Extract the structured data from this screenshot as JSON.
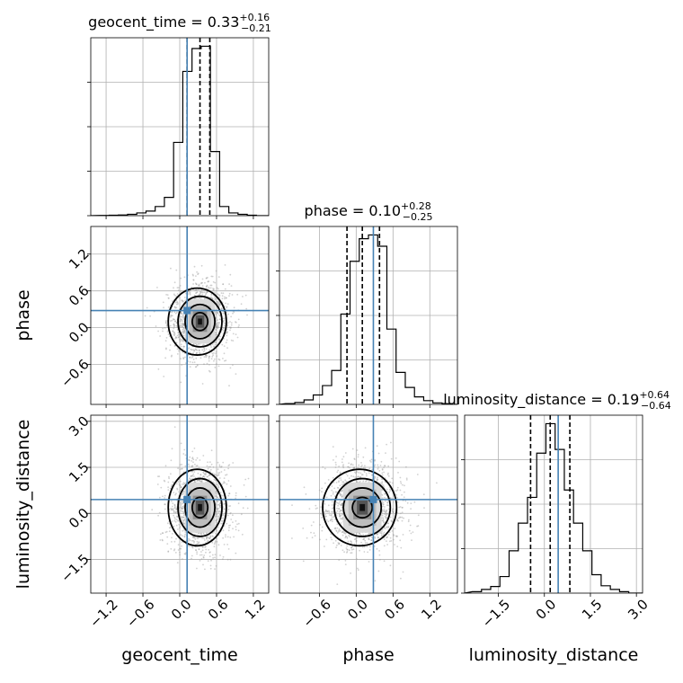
{
  "chart_data": {
    "type": "corner",
    "parameters": [
      "geocent_time",
      "phase",
      "luminosity_distance"
    ],
    "titles": [
      {
        "name": "geocent_time",
        "median": "0.33",
        "plus": "+0.16",
        "minus": "−0.21"
      },
      {
        "name": "phase",
        "median": "0.10",
        "plus": "+0.28",
        "minus": "−0.25"
      },
      {
        "name": "luminosity_distance",
        "median": "0.19",
        "plus": "+0.64",
        "minus": "−0.64"
      }
    ],
    "ranges": [
      [
        -1.45,
        1.45
      ],
      [
        -1.25,
        1.65
      ],
      [
        -2.6,
        3.2
      ]
    ],
    "ticks": [
      {
        "values": [
          -1.2,
          -0.6,
          0.0,
          0.6,
          1.2
        ],
        "labels": [
          "−1.2",
          "−0.6",
          "0.0",
          "0.6",
          "1.2"
        ]
      },
      {
        "values": [
          -0.6,
          0.0,
          0.6,
          1.2
        ],
        "labels": [
          "−0.6",
          "0.0",
          "0.6",
          "1.2"
        ]
      },
      {
        "values": [
          -1.5,
          0.0,
          1.5,
          3.0
        ],
        "labels": [
          "−1.5",
          "0.0",
          "1.5",
          "3.0"
        ]
      }
    ],
    "truths": [
      0.12,
      0.28,
      0.45
    ],
    "quantiles": [
      [
        0.12,
        0.33,
        0.49
      ],
      [
        -0.15,
        0.1,
        0.38
      ],
      [
        -0.45,
        0.19,
        0.83
      ]
    ],
    "histograms": [
      {
        "edges": [
          -1.3,
          -1.15,
          -1.0,
          -0.85,
          -0.7,
          -0.55,
          -0.4,
          -0.25,
          -0.1,
          0.05,
          0.2,
          0.35,
          0.5,
          0.65,
          0.8,
          0.95,
          1.1,
          1.25
        ],
        "counts": [
          1,
          2,
          3,
          6,
          12,
          20,
          40,
          80,
          320,
          630,
          730,
          740,
          280,
          40,
          12,
          6,
          2
        ]
      },
      {
        "edges": [
          -1.15,
          -1.0,
          -0.85,
          -0.7,
          -0.55,
          -0.4,
          -0.25,
          -0.1,
          0.05,
          0.2,
          0.35,
          0.5,
          0.65,
          0.8,
          0.95,
          1.1,
          1.25,
          1.4,
          1.55
        ],
        "counts": [
          2,
          5,
          12,
          25,
          50,
          90,
          240,
          380,
          440,
          450,
          420,
          200,
          85,
          45,
          20,
          10,
          4,
          2
        ]
      },
      {
        "edges": [
          -2.35,
          -2.05,
          -1.75,
          -1.45,
          -1.15,
          -0.85,
          -0.55,
          -0.25,
          0.05,
          0.35,
          0.65,
          0.95,
          1.25,
          1.55,
          1.85,
          2.15,
          2.45,
          2.75
        ],
        "counts": [
          4,
          10,
          18,
          45,
          115,
          190,
          260,
          380,
          460,
          390,
          280,
          190,
          115,
          50,
          20,
          10,
          4
        ]
      }
    ],
    "pairs": [
      {
        "x": 0,
        "y": 1,
        "center": [
          0.33,
          0.1
        ],
        "sigma": [
          0.22,
          0.28
        ]
      },
      {
        "x": 0,
        "y": 2,
        "center": [
          0.33,
          0.19
        ],
        "sigma": [
          0.22,
          0.64
        ]
      },
      {
        "x": 1,
        "y": 2,
        "center": [
          0.1,
          0.19
        ],
        "sigma": [
          0.28,
          0.64
        ]
      }
    ],
    "grid": true,
    "colors": {
      "truth": "#4682b4",
      "contour": "#000000",
      "points": "#9a9a9a"
    }
  }
}
